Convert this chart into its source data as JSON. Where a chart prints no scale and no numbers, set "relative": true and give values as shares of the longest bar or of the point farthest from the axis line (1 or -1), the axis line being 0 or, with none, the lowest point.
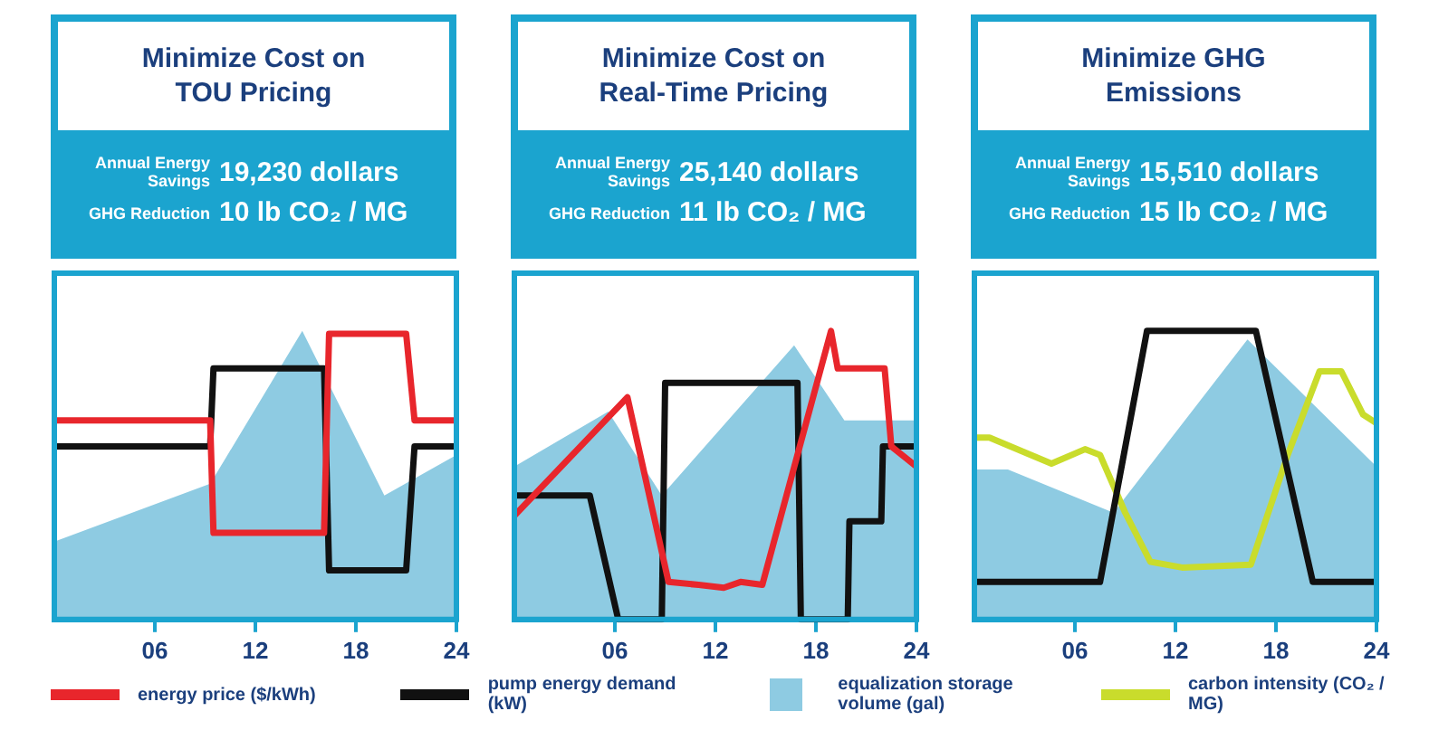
{
  "chart_data": [
    {
      "type": "line",
      "title": "Minimize Cost on TOU Pricing",
      "annotations": [
        "Annual Energy Savings",
        "19,230 dollars",
        "GHG Reduction",
        "10 lb CO₂ / MG"
      ],
      "relative": true,
      "xlim": [
        0,
        24
      ],
      "xticks": [
        {
          "value": 6,
          "label": "06"
        },
        {
          "value": 12,
          "label": "12"
        },
        {
          "value": 18,
          "label": "18"
        },
        {
          "value": 24,
          "label": "24"
        }
      ],
      "tick_labels": "x",
      "marker": "none",
      "legend": "bottom",
      "series": [
        {
          "name": "energy price ($/kWh)",
          "color": "#e8262c",
          "x": [
            0,
            9.3,
            9.5,
            16.1,
            16.4,
            21,
            21.5,
            24
          ],
          "values": [
            0.69,
            0.69,
            0.3,
            0.3,
            0.99,
            0.99,
            0.69,
            0.69
          ]
        },
        {
          "name": "pump energy demand (kW)",
          "color": "#111111",
          "x": [
            0,
            9.3,
            9.5,
            16.1,
            16.4,
            21,
            21.5,
            24
          ],
          "values": [
            0.6,
            0.6,
            0.87,
            0.87,
            0.17,
            0.17,
            0.6,
            0.6
          ]
        },
        {
          "name": "equalization storage volume (gal)",
          "type": "area",
          "color": "#8ecbe2",
          "x": [
            0,
            9.3,
            14.8,
            19.7,
            24
          ],
          "values": [
            0.27,
            0.47,
            1.0,
            0.43,
            0.57
          ]
        }
      ]
    },
    {
      "type": "line",
      "title": "Minimize Cost on Real-Time Pricing",
      "annotations": [
        "Annual Energy Savings",
        "25,140 dollars",
        "GHG Reduction",
        "11 lb CO₂ / MG"
      ],
      "relative": true,
      "xlim": [
        0,
        24
      ],
      "xticks": [
        {
          "value": 6,
          "label": "06"
        },
        {
          "value": 12,
          "label": "12"
        },
        {
          "value": 18,
          "label": "18"
        },
        {
          "value": 24,
          "label": "24"
        }
      ],
      "tick_labels": "x",
      "marker": "none",
      "legend": "bottom",
      "series": [
        {
          "name": "energy price ($/kWh)",
          "color": "#e8262c",
          "x": [
            0,
            6.75,
            9.2,
            11,
            12.5,
            13.5,
            14.8,
            18.9,
            19.3,
            22.1,
            22.5,
            24
          ],
          "values": [
            0.36,
            0.77,
            0.13,
            0.12,
            0.11,
            0.13,
            0.12,
            1.0,
            0.87,
            0.87,
            0.6,
            0.53
          ]
        },
        {
          "name": "pump energy demand (kW)",
          "color": "#111111",
          "x": [
            0,
            4.5,
            6.2,
            8.8,
            9.0,
            16.9,
            17.1,
            19.9,
            20.0,
            21.9,
            22.0,
            24
          ],
          "values": [
            0.43,
            0.43,
            0,
            0,
            0.82,
            0.82,
            0,
            0,
            0.34,
            0.34,
            0.6,
            0.6
          ]
        },
        {
          "name": "equalization storage volume (gal)",
          "type": "area",
          "color": "#8ecbe2",
          "x": [
            0,
            5.6,
            8.8,
            16.7,
            19.7,
            24
          ],
          "values": [
            0.53,
            0.72,
            0.43,
            0.95,
            0.69,
            0.69
          ]
        }
      ]
    },
    {
      "type": "line",
      "title": "Minimize GHG Emissions",
      "annotations": [
        "Annual Energy Savings",
        "15,510 dollars",
        "GHG Reduction",
        "15 lb CO₂ / MG"
      ],
      "relative": true,
      "xlim": [
        0,
        24
      ],
      "xticks": [
        {
          "value": 6,
          "label": "06"
        },
        {
          "value": 12,
          "label": "12"
        },
        {
          "value": 18,
          "label": "18"
        },
        {
          "value": 24,
          "label": "24"
        }
      ],
      "tick_labels": "x",
      "marker": "none",
      "legend": "bottom",
      "series": [
        {
          "name": "pump energy demand (kW)",
          "color": "#111111",
          "x": [
            0,
            7.5,
            10.3,
            16.8,
            20.2,
            24
          ],
          "values": [
            0.13,
            0.13,
            1.0,
            1.0,
            0.13,
            0.13
          ]
        },
        {
          "name": "carbon intensity (CO₂ / MG)",
          "color": "#c9dc2c",
          "x": [
            0,
            0.9,
            4.6,
            6.6,
            7.5,
            9.0,
            10.5,
            12.4,
            16.5,
            18.7,
            20.6,
            21.9,
            23.2,
            24
          ],
          "values": [
            0.63,
            0.63,
            0.54,
            0.59,
            0.57,
            0.37,
            0.2,
            0.18,
            0.19,
            0.57,
            0.86,
            0.86,
            0.71,
            0.68
          ]
        },
        {
          "name": "equalization storage volume (gal)",
          "type": "area",
          "color": "#8ecbe2",
          "x": [
            0,
            2,
            8.3,
            16.3,
            24
          ],
          "values": [
            0.52,
            0.52,
            0.37,
            0.97,
            0.53
          ]
        }
      ]
    }
  ]
}
